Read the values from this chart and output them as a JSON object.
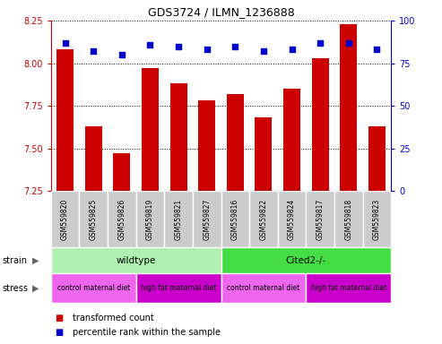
{
  "title": "GDS3724 / ILMN_1236888",
  "samples": [
    "GSM559820",
    "GSM559825",
    "GSM559826",
    "GSM559819",
    "GSM559821",
    "GSM559827",
    "GSM559816",
    "GSM559822",
    "GSM559824",
    "GSM559817",
    "GSM559818",
    "GSM559823"
  ],
  "bar_values": [
    8.08,
    7.63,
    7.47,
    7.97,
    7.88,
    7.78,
    7.82,
    7.68,
    7.85,
    8.03,
    8.23,
    7.63
  ],
  "dot_values": [
    87,
    82,
    80,
    86,
    85,
    83,
    85,
    82,
    83,
    87,
    87,
    83
  ],
  "ylim": [
    7.25,
    8.25
  ],
  "y2lim": [
    0,
    100
  ],
  "yticks": [
    7.25,
    7.5,
    7.75,
    8.0,
    8.25
  ],
  "y2ticks": [
    0,
    25,
    50,
    75,
    100
  ],
  "bar_color": "#cc0000",
  "dot_color": "#0000cc",
  "bar_width": 0.6,
  "strain_groups": [
    {
      "label": "wildtype",
      "start": 0,
      "end": 6,
      "color": "#b0f0b0"
    },
    {
      "label": "Cited2-/-",
      "start": 6,
      "end": 12,
      "color": "#44dd44"
    }
  ],
  "stress_groups": [
    {
      "label": "control maternal diet",
      "start": 0,
      "end": 3,
      "color": "#ee66ee"
    },
    {
      "label": "high fat maternal diet",
      "start": 3,
      "end": 6,
      "color": "#cc00cc"
    },
    {
      "label": "control maternal diet",
      "start": 6,
      "end": 9,
      "color": "#ee66ee"
    },
    {
      "label": "high fat maternal diet",
      "start": 9,
      "end": 12,
      "color": "#cc00cc"
    }
  ],
  "legend_items": [
    {
      "label": "transformed count",
      "color": "#cc0000"
    },
    {
      "label": "percentile rank within the sample",
      "color": "#0000cc"
    }
  ],
  "xlabel_strain": "strain",
  "xlabel_stress": "stress",
  "axis_color_left": "#cc0000",
  "axis_color_right": "#0000cc",
  "sample_bg": "#cccccc",
  "plot_bg": "#ffffff"
}
